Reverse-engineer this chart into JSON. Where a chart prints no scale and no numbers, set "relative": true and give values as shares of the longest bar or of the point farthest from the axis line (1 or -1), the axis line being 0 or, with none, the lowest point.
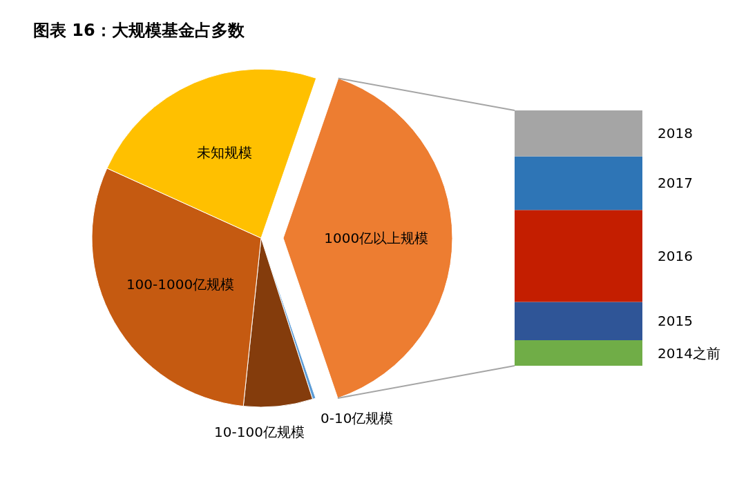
{
  "chart_data": [
    {
      "type": "pie",
      "title": "图表 16：大规模基金占多数",
      "categories": [
        "1000亿以上规模",
        "0-10亿规模",
        "10-100亿规模",
        "100-1000亿规模",
        "未知规模"
      ],
      "values": [
        39.5,
        0.3,
        6.6,
        30.1,
        23.5
      ],
      "colors": [
        "#ed7d31",
        "#5b9bd5",
        "#843c0c",
        "#c55a11",
        "#ffc000"
      ]
    },
    {
      "type": "bar",
      "stacked": true,
      "relative": true,
      "categories": [
        null
      ],
      "series": [
        {
          "name": "2014之前",
          "color": "#70ad47",
          "values": [
            0.1
          ]
        },
        {
          "name": "2015",
          "color": "#2f5597",
          "values": [
            0.15
          ]
        },
        {
          "name": "2016",
          "color": "#c41e00",
          "values": [
            0.36
          ]
        },
        {
          "name": "2017",
          "color": "#2e75b6",
          "values": [
            0.21
          ]
        },
        {
          "name": "2018",
          "color": "#a5a5a5",
          "values": [
            0.18
          ]
        }
      ]
    }
  ]
}
